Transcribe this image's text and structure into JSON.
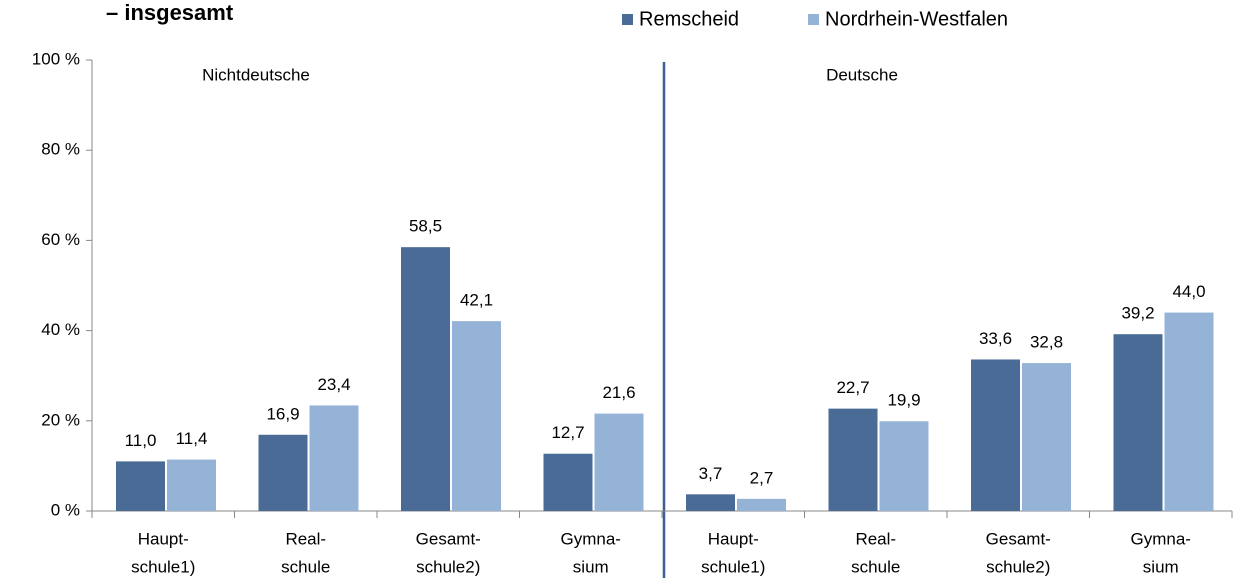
{
  "chart_data": {
    "type": "bar",
    "title": "– insgesamt",
    "annotations": [
      "Nichtdeutsche",
      "Deutsche"
    ],
    "categories": [
      [
        "Haupt-",
        "schule1)"
      ],
      [
        "Real-",
        "schule"
      ],
      [
        "Gesamt-",
        "schule2)"
      ],
      [
        "Gymna-",
        "sium"
      ],
      [
        "Haupt-",
        "schule1)"
      ],
      [
        "Real-",
        "schule"
      ],
      [
        "Gesamt-",
        "schule2)"
      ],
      [
        "Gymna-",
        "sium"
      ]
    ],
    "series": [
      {
        "name": "Remscheid",
        "color": "#4a6b96",
        "values": [
          11.0,
          16.9,
          58.5,
          12.7,
          3.7,
          22.7,
          33.6,
          39.2
        ],
        "value_labels": [
          "11,0",
          "16,9",
          "58,5",
          "12,7",
          "3,7",
          "22,7",
          "33,6",
          "39,2"
        ]
      },
      {
        "name": "Nordrhein-Westfalen",
        "color": "#95b3d7",
        "values": [
          11.4,
          23.4,
          42.1,
          21.6,
          2.7,
          19.9,
          32.8,
          44.0
        ],
        "value_labels": [
          "11,4",
          "23,4",
          "42,1",
          "21,6",
          "2,7",
          "19,9",
          "32,8",
          "44,0"
        ]
      }
    ],
    "ylim": [
      0,
      100
    ],
    "yticks": [
      {
        "value": 0,
        "label": "0 %"
      },
      {
        "value": 20,
        "label": "20 %"
      },
      {
        "value": 40,
        "label": "40 %"
      },
      {
        "value": 60,
        "label": "60 %"
      },
      {
        "value": 80,
        "label": "80 %"
      },
      {
        "value": 100,
        "label": "100 %"
      }
    ],
    "legend": "top"
  }
}
